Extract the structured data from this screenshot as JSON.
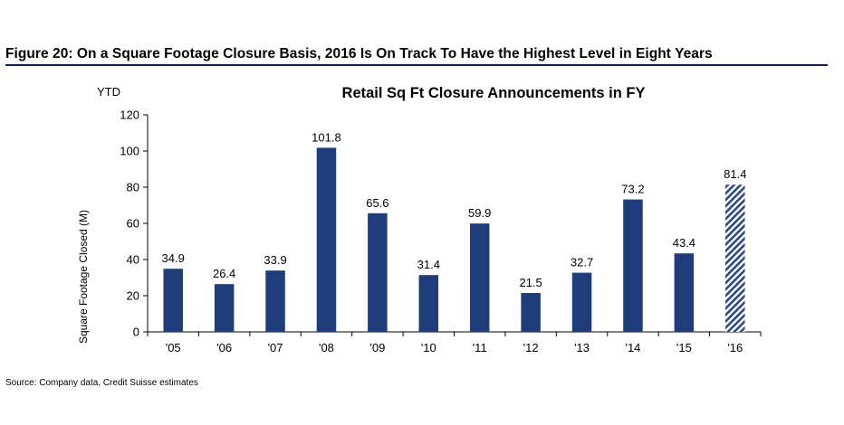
{
  "figure": {
    "title": "Figure 20: On a Square Footage Closure Basis, 2016 Is On Track To Have the Highest Level in Eight Years",
    "source": "Source: Company data, Credit Suisse estimates"
  },
  "chart_data": {
    "type": "bar",
    "title": "Retail Sq Ft Closure Announcements in FY",
    "annotation": "YTD",
    "xlabel": "",
    "ylabel": "Square Footage Closed (M)",
    "ylim": [
      0,
      120
    ],
    "yticks": [
      0,
      20,
      40,
      60,
      80,
      100,
      120
    ],
    "grid": false,
    "categories": [
      "'05",
      "'06",
      "'07",
      "'08",
      "'09",
      "'10",
      "'11",
      "'12",
      "'13",
      "'14",
      "'15",
      "'16"
    ],
    "values": [
      34.9,
      26.4,
      33.9,
      101.8,
      65.6,
      31.4,
      59.9,
      21.5,
      32.7,
      73.2,
      43.4,
      81.4
    ],
    "value_labels": [
      "34.9",
      "26.4",
      "33.9",
      "101.8",
      "65.6",
      "31.4",
      "59.9",
      "21.5",
      "32.7",
      "73.2",
      "43.4",
      "81.4"
    ],
    "hatched_categories": [
      "'16"
    ],
    "bar_color": "#1f3d7a",
    "hatch_color": "#2b4a85"
  }
}
